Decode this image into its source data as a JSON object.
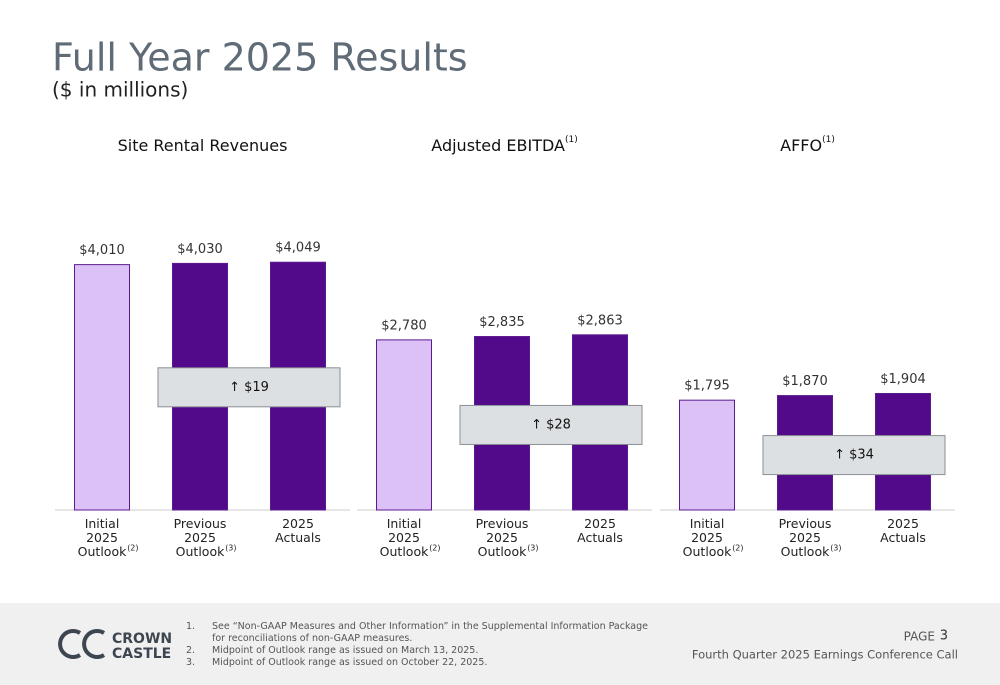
{
  "header": {
    "title": "Full Year 2025 Results",
    "subtitle": "($ in millions)"
  },
  "chart_data": [
    {
      "type": "bar",
      "title": "Site Rental Revenues",
      "title_note": null,
      "categories": [
        "Initial 2025 Outlook",
        "Previous 2025 Outlook",
        "2025 Actuals"
      ],
      "category_notes": [
        "(2)",
        "(3)",
        null
      ],
      "values": [
        4010,
        4030,
        4049
      ],
      "value_labels": [
        "$4,010",
        "$4,030",
        "$4,049"
      ],
      "colors": [
        "#dcc1f6",
        "#520a8b",
        "#520a8b"
      ],
      "ylim": [
        0,
        4200
      ],
      "annotation": "↑ $19"
    },
    {
      "type": "bar",
      "title": "Adjusted EBITDA",
      "title_note": "(1)",
      "categories": [
        "Initial 2025 Outlook",
        "Previous 2025 Outlook",
        "2025 Actuals"
      ],
      "category_notes": [
        "(2)",
        "(3)",
        null
      ],
      "values": [
        2780,
        2835,
        2863
      ],
      "value_labels": [
        "$2,780",
        "$2,835",
        "$2,863"
      ],
      "colors": [
        "#dcc1f6",
        "#520a8b",
        "#520a8b"
      ],
      "ylim": [
        0,
        4200
      ],
      "annotation": "↑ $28"
    },
    {
      "type": "bar",
      "title": "AFFO",
      "title_note": "(1)",
      "categories": [
        "Initial 2025 Outlook",
        "Previous 2025 Outlook",
        "2025 Actuals"
      ],
      "category_notes": [
        "(2)",
        "(3)",
        null
      ],
      "values": [
        1795,
        1870,
        1904
      ],
      "value_labels": [
        "$1,795",
        "$1,870",
        "$1,904"
      ],
      "colors": [
        "#dcc1f6",
        "#520a8b",
        "#520a8b"
      ],
      "ylim": [
        0,
        4200
      ],
      "annotation": "↑ $34"
    }
  ],
  "footer": {
    "logo": [
      "CROWN",
      "CASTLE"
    ],
    "notes": [
      {
        "marker": "1.",
        "text": "See “Non-GAAP Measures and Other Information” in the Supplemental Information Package for reconciliations of non-GAAP measures."
      },
      {
        "marker": "2.",
        "text": "Midpoint of Outlook range as issued on March 13, 2025."
      },
      {
        "marker": "3.",
        "text": "Midpoint of Outlook range as issued on October 22, 2025."
      }
    ],
    "page_label": "PAGE",
    "page_number": "3",
    "event": "Fourth Quarter 2025 Earnings Conference Call"
  }
}
